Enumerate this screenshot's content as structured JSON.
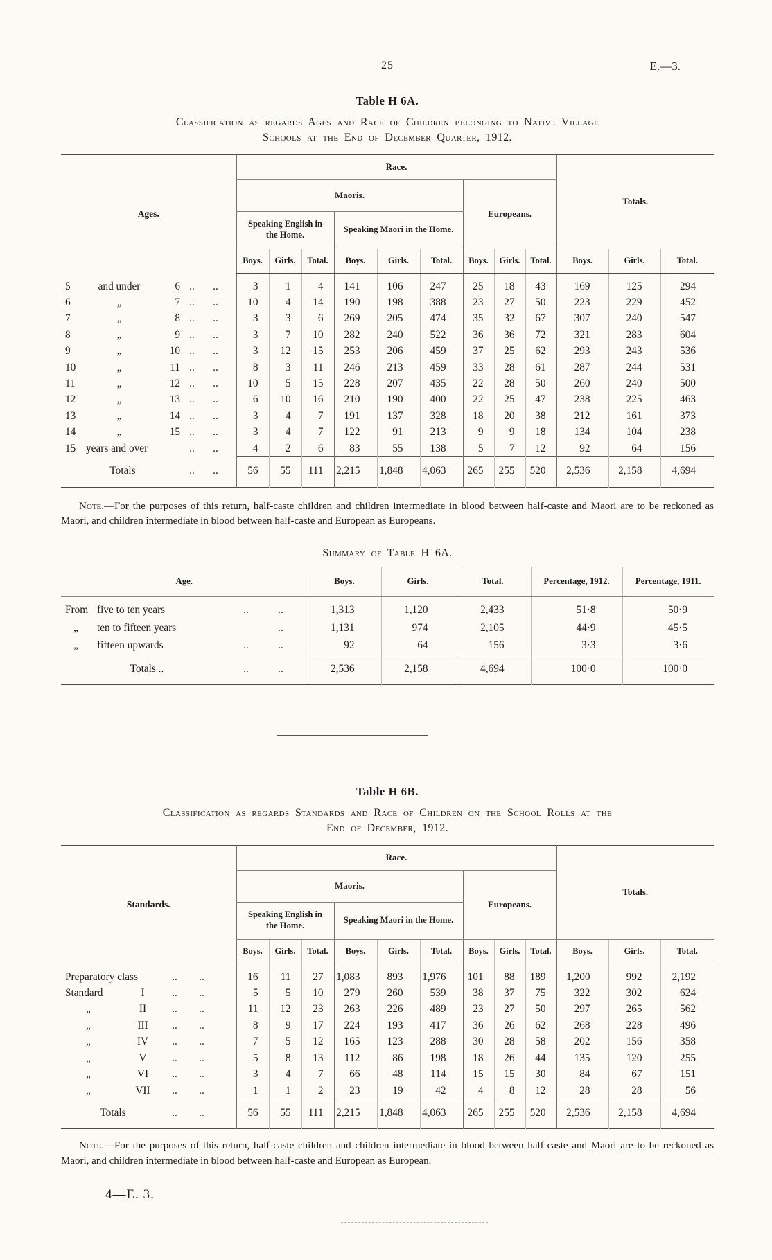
{
  "page": {
    "number": "25",
    "doc_ref": "E.—3.",
    "footer": "4—E. 3."
  },
  "h6a": {
    "title": "Table H 6A.",
    "heading_l1": "Classification as regards Ages and Race of Children belonging to Native Village",
    "heading_l2": "Schools at the End of December Quarter, 1912.",
    "header": {
      "ages": "Ages.",
      "race": "Race.",
      "maoris": "Maoris.",
      "speaking_english": "Speaking English in the Home.",
      "speaking_maori": "Speaking Maori in the Home.",
      "europeans": "Europeans.",
      "totals": "Totals.",
      "boys": "Boys.",
      "girls": "Girls.",
      "total": "Total."
    },
    "rows": [
      {
        "l1": "5",
        "l2": "and under",
        "l3": "6",
        "values": [
          "3",
          "1",
          "4",
          "141",
          "106",
          "247",
          "25",
          "18",
          "43",
          "169",
          "125",
          "294"
        ]
      },
      {
        "l1": "6",
        "l2": "„",
        "l3": "7",
        "values": [
          "10",
          "4",
          "14",
          "190",
          "198",
          "388",
          "23",
          "27",
          "50",
          "223",
          "229",
          "452"
        ]
      },
      {
        "l1": "7",
        "l2": "„",
        "l3": "8",
        "values": [
          "3",
          "3",
          "6",
          "269",
          "205",
          "474",
          "35",
          "32",
          "67",
          "307",
          "240",
          "547"
        ]
      },
      {
        "l1": "8",
        "l2": "„",
        "l3": "9",
        "values": [
          "3",
          "7",
          "10",
          "282",
          "240",
          "522",
          "36",
          "36",
          "72",
          "321",
          "283",
          "604"
        ]
      },
      {
        "l1": "9",
        "l2": "„",
        "l3": "10",
        "values": [
          "3",
          "12",
          "15",
          "253",
          "206",
          "459",
          "37",
          "25",
          "62",
          "293",
          "243",
          "536"
        ]
      },
      {
        "l1": "10",
        "l2": "„",
        "l3": "11",
        "values": [
          "8",
          "3",
          "11",
          "246",
          "213",
          "459",
          "33",
          "28",
          "61",
          "287",
          "244",
          "531"
        ]
      },
      {
        "l1": "11",
        "l2": "„",
        "l3": "12",
        "values": [
          "10",
          "5",
          "15",
          "228",
          "207",
          "435",
          "22",
          "28",
          "50",
          "260",
          "240",
          "500"
        ]
      },
      {
        "l1": "12",
        "l2": "„",
        "l3": "13",
        "values": [
          "6",
          "10",
          "16",
          "210",
          "190",
          "400",
          "22",
          "25",
          "47",
          "238",
          "225",
          "463"
        ]
      },
      {
        "l1": "13",
        "l2": "„",
        "l3": "14",
        "values": [
          "3",
          "4",
          "7",
          "191",
          "137",
          "328",
          "18",
          "20",
          "38",
          "212",
          "161",
          "373"
        ]
      },
      {
        "l1": "14",
        "l2": "„",
        "l3": "15",
        "values": [
          "3",
          "4",
          "7",
          "122",
          "91",
          "213",
          "9",
          "9",
          "18",
          "134",
          "104",
          "238"
        ]
      },
      {
        "l1": "15",
        "l2": "years and over",
        "l3": "",
        "values": [
          "4",
          "2",
          "6",
          "83",
          "55",
          "138",
          "5",
          "7",
          "12",
          "92",
          "64",
          "156"
        ]
      }
    ],
    "totals_row": {
      "label": "Totals",
      "values": [
        "56",
        "55",
        "111",
        "2,215",
        "1,848",
        "4,063",
        "265",
        "255",
        "520",
        "2,536",
        "2,158",
        "4,694"
      ]
    },
    "note_label": "Note.",
    "note_text": "—For the purposes of this return, half-caste children and children intermediate in blood between half-caste and Maori are to be reckoned as Maori, and children intermediate in blood between half-caste and European as Europeans."
  },
  "summary": {
    "title": "Summary of Table H 6A.",
    "header": {
      "age": "Age.",
      "boys": "Boys.",
      "girls": "Girls.",
      "total": "Total.",
      "pct1912": "Percentage, 1912.",
      "pct1911": "Percentage, 1911."
    },
    "rows": [
      {
        "c1": "From",
        "c2": "five to ten years",
        "d1": "..",
        "d2": "..",
        "values": [
          "1,313",
          "1,120",
          "2,433",
          "51·8",
          "50·9"
        ]
      },
      {
        "c1": "„",
        "c2": "ten to fifteen years",
        "d1": "",
        "d2": "..",
        "values": [
          "1,131",
          "974",
          "2,105",
          "44·9",
          "45·5"
        ]
      },
      {
        "c1": "„",
        "c2": "fifteen upwards",
        "d1": "..",
        "d2": "..",
        "values": [
          "92",
          "64",
          "156",
          "3·3",
          "3·6"
        ]
      }
    ],
    "totals_row": {
      "label": "Totals ..",
      "d1": "..",
      "d2": "..",
      "values": [
        "2,536",
        "2,158",
        "4,694",
        "100·0",
        "100·0"
      ]
    }
  },
  "h6b": {
    "title": "Table H 6B.",
    "heading_l1": "Classification as regards Standards and Race of Children on the School Rolls at the",
    "heading_l2": "End of December, 1912.",
    "header": {
      "standards": "Standards.",
      "race": "Race.",
      "maoris": "Maoris.",
      "speaking_english": "Speaking English in the Home.",
      "speaking_maori": "Speaking Maori in the Home.",
      "europeans": "Europeans.",
      "totals": "Totals.",
      "boys": "Boys.",
      "girls": "Girls.",
      "total": "Total."
    },
    "rows": [
      {
        "l1": "Preparatory class",
        "l2": "",
        "values": [
          "16",
          "11",
          "27",
          "1,083",
          "893",
          "1,976",
          "101",
          "88",
          "189",
          "1,200",
          "992",
          "2,192"
        ]
      },
      {
        "l1": "Standard",
        "l2": "I",
        "values": [
          "5",
          "5",
          "10",
          "279",
          "260",
          "539",
          "38",
          "37",
          "75",
          "322",
          "302",
          "624"
        ]
      },
      {
        "l1": "„",
        "l2": "II",
        "values": [
          "11",
          "12",
          "23",
          "263",
          "226",
          "489",
          "23",
          "27",
          "50",
          "297",
          "265",
          "562"
        ]
      },
      {
        "l1": "„",
        "l2": "III",
        "values": [
          "8",
          "9",
          "17",
          "224",
          "193",
          "417",
          "36",
          "26",
          "62",
          "268",
          "228",
          "496"
        ]
      },
      {
        "l1": "„",
        "l2": "IV",
        "values": [
          "7",
          "5",
          "12",
          "165",
          "123",
          "288",
          "30",
          "28",
          "58",
          "202",
          "156",
          "358"
        ]
      },
      {
        "l1": "„",
        "l2": "V",
        "values": [
          "5",
          "8",
          "13",
          "112",
          "86",
          "198",
          "18",
          "26",
          "44",
          "135",
          "120",
          "255"
        ]
      },
      {
        "l1": "„",
        "l2": "VI",
        "values": [
          "3",
          "4",
          "7",
          "66",
          "48",
          "114",
          "15",
          "15",
          "30",
          "84",
          "67",
          "151"
        ]
      },
      {
        "l1": "„",
        "l2": "VII",
        "values": [
          "1",
          "1",
          "2",
          "23",
          "19",
          "42",
          "4",
          "8",
          "12",
          "28",
          "28",
          "56"
        ]
      }
    ],
    "totals_row": {
      "label": "Totals",
      "values": [
        "56",
        "55",
        "111",
        "2,215",
        "1,848",
        "4,063",
        "265",
        "255",
        "520",
        "2,536",
        "2,158",
        "4,694"
      ]
    },
    "note_label": "Note.",
    "note_text": "—For the purposes of this return, half-caste children and children intermediate in blood between half-caste and Maori are to be reckoned as Maori, and children intermediate in blood between half-caste and European as European."
  }
}
